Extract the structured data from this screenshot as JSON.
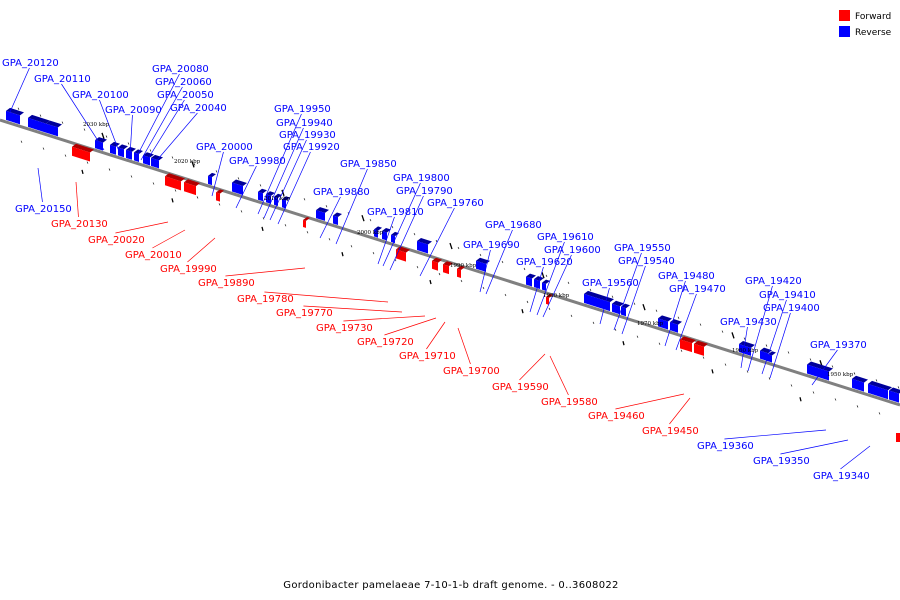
{
  "caption": "Gordonibacter pamelaeae 7-10-1-b draft genome. - 0..3608022",
  "legend": [
    {
      "label": "Forward",
      "color": "#ff0000"
    },
    {
      "label": "Reverse",
      "color": "#0000ff"
    }
  ],
  "colors": {
    "forward": "#ff0000",
    "reverse": "#0000ff",
    "backbone": "#808080"
  },
  "scale_labels": [
    "2030 kbp",
    "2020 kbp",
    "2010 kbp",
    "2000 kbp",
    "1990 kbp",
    "1980 kbp",
    "1970 kbp",
    "1960 kbp",
    "1950 kbp"
  ],
  "reverse_genes": [
    "GPA_20120",
    "GPA_20110",
    "GPA_20100",
    "GPA_20090",
    "GPA_20080",
    "GPA_20060",
    "GPA_20050",
    "GPA_20040",
    "GPA_20000",
    "GPA_19980",
    "GPA_19950",
    "GPA_19940",
    "GPA_19930",
    "GPA_19920",
    "GPA_19880",
    "GPA_19850",
    "GPA_19810",
    "GPA_19800",
    "GPA_19790",
    "GPA_19760",
    "GPA_19690",
    "GPA_19680",
    "GPA_19620",
    "GPA_19610",
    "GPA_19600",
    "GPA_19560",
    "GPA_19550",
    "GPA_19540",
    "GPA_19480",
    "GPA_19470",
    "GPA_19430",
    "GPA_19420",
    "GPA_19410",
    "GPA_19400",
    "GPA_19370",
    "GPA_20150",
    "GPA_19360",
    "GPA_19350",
    "GPA_19340"
  ],
  "forward_genes": [
    "GPA_20130",
    "GPA_20020",
    "GPA_20010",
    "GPA_19990",
    "GPA_19890",
    "GPA_19780",
    "GPA_19770",
    "GPA_19730",
    "GPA_19720",
    "GPA_19710",
    "GPA_19700",
    "GPA_19590",
    "GPA_19580",
    "GPA_19460",
    "GPA_19450"
  ]
}
